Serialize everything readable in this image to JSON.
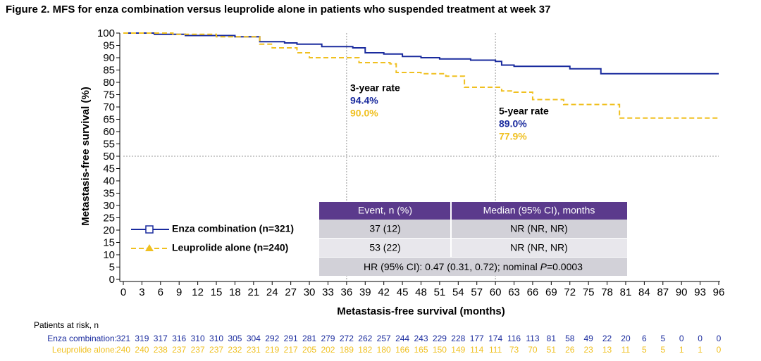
{
  "chart_data": {
    "type": "line",
    "step": true,
    "title": "Figure 2. MFS for enza combination versus leuprolide alone in patients who suspended treatment at week 37",
    "x_label": "Metastasis-free survival (months)",
    "y_label": "Metastasis-free survival (%)",
    "xlim": [
      0,
      96
    ],
    "xticks": [
      0,
      3,
      6,
      9,
      12,
      15,
      18,
      21,
      24,
      27,
      30,
      33,
      36,
      39,
      42,
      45,
      48,
      51,
      54,
      57,
      60,
      63,
      66,
      69,
      72,
      75,
      78,
      81,
      84,
      87,
      90,
      93,
      96
    ],
    "ylim": [
      0,
      100
    ],
    "yticks": [
      0,
      5,
      10,
      15,
      20,
      25,
      30,
      35,
      40,
      45,
      50,
      55,
      60,
      65,
      70,
      75,
      80,
      85,
      90,
      95,
      100
    ],
    "vlines": [
      36,
      60
    ],
    "hline": 50,
    "series": [
      {
        "name": "Enza combination (n=321)",
        "color": "#1a2b9e",
        "linestyle": "solid",
        "marker": "square",
        "x": [
          0,
          5,
          5,
          10,
          10,
          18,
          18,
          22,
          22,
          26,
          26,
          28,
          28,
          32,
          32,
          37,
          37,
          39,
          39,
          42,
          42,
          45,
          45,
          48,
          48,
          51,
          51,
          56,
          56,
          60,
          60,
          61,
          61,
          63,
          63,
          72,
          72,
          77,
          77,
          96
        ],
        "values": [
          100,
          100,
          99.5,
          99.5,
          99,
          99,
          98.5,
          98.5,
          96.5,
          96.5,
          96,
          96,
          95.5,
          95.5,
          94.5,
          94.5,
          94,
          94,
          92,
          92,
          91.5,
          91.5,
          90.5,
          90.5,
          90,
          90,
          89.5,
          89.5,
          89,
          89,
          88.5,
          88.5,
          87,
          87,
          86.5,
          86.5,
          85.5,
          85.5,
          83.5,
          83.5
        ]
      },
      {
        "name": "Leuprolide alone (n=240)",
        "color": "#f0c020",
        "linestyle": "dashed",
        "marker": "triangle",
        "x": [
          0,
          8,
          8,
          15,
          15,
          22,
          22,
          24,
          24,
          28,
          28,
          30,
          30,
          38,
          38,
          43,
          43,
          44,
          44,
          48,
          48,
          52,
          52,
          55,
          55,
          61,
          61,
          63,
          63,
          66,
          66,
          71,
          71,
          80,
          80,
          96
        ],
        "values": [
          100,
          100,
          99.5,
          99.5,
          98.5,
          98.5,
          95.5,
          95.5,
          94,
          94,
          92,
          92,
          90,
          90,
          88,
          88,
          87.5,
          87.5,
          84,
          84,
          83.5,
          83.5,
          82.5,
          82.5,
          78,
          78,
          76.5,
          76.5,
          76,
          76,
          73,
          73,
          71,
          71,
          65.5,
          65.5
        ]
      }
    ],
    "annotations": [
      {
        "label": "3-year rate",
        "rates": [
          "94.4%",
          "90.0%"
        ]
      },
      {
        "label": "5-year rate",
        "rates": [
          "89.0%",
          "77.9%"
        ]
      }
    ],
    "summary_table": {
      "header": [
        "Event, n (%)",
        "Median (95% CI), months"
      ],
      "rows": [
        [
          "37 (12)",
          "NR (NR, NR)"
        ],
        [
          "53 (22)",
          "NR (NR, NR)"
        ]
      ],
      "footer": [
        "HR (95% CI): 0.47 (0.31, 0.72); nominal ",
        "P",
        "=0.0003"
      ]
    },
    "risk_table": {
      "title": "Patients at risk, n",
      "rows": [
        {
          "label": "Enza combination:",
          "values": [
            321,
            319,
            317,
            316,
            310,
            310,
            305,
            304,
            292,
            291,
            281,
            279,
            272,
            262,
            257,
            244,
            243,
            229,
            228,
            177,
            174,
            116,
            113,
            81,
            58,
            49,
            22,
            20,
            6,
            5,
            0,
            0,
            0
          ]
        },
        {
          "label": "Leuprolide alone:",
          "values": [
            240,
            240,
            238,
            237,
            237,
            237,
            232,
            231,
            219,
            217,
            205,
            202,
            189,
            182,
            180,
            166,
            165,
            150,
            149,
            114,
            111,
            73,
            70,
            51,
            26,
            23,
            13,
            11,
            5,
            5,
            1,
            1,
            0
          ]
        }
      ]
    }
  }
}
